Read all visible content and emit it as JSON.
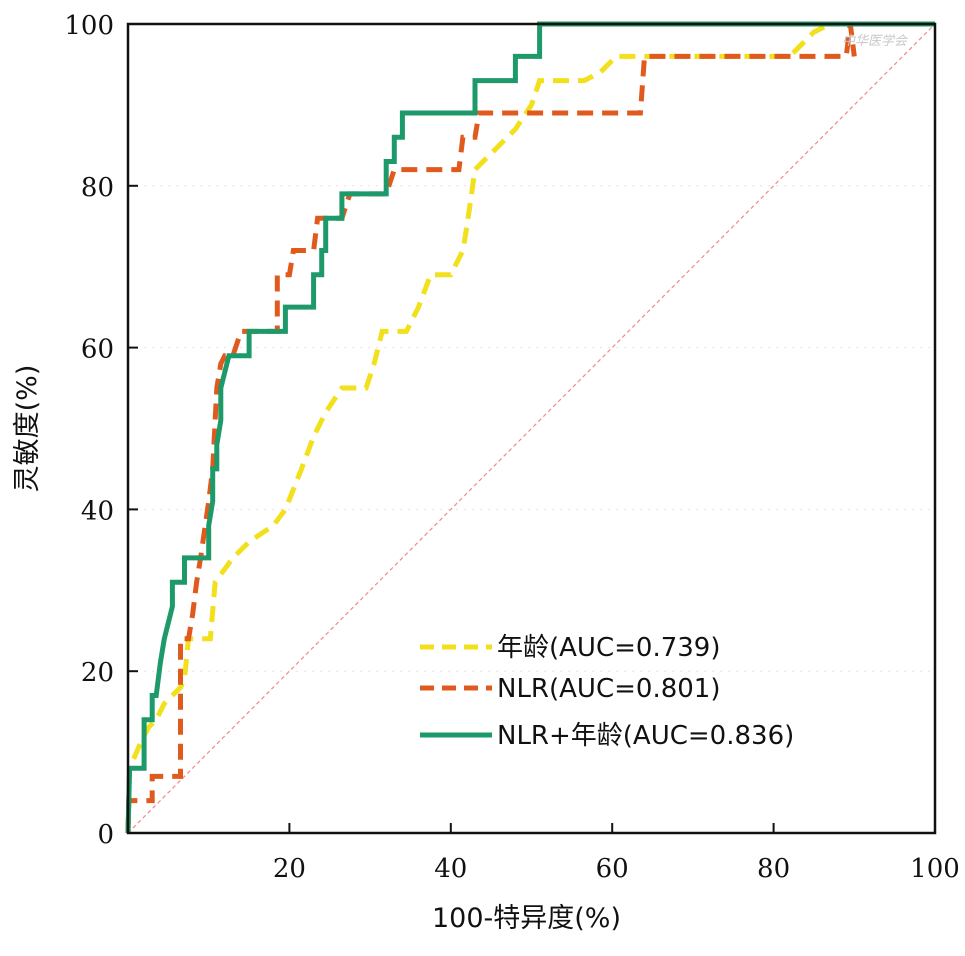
{
  "chart_data": {
    "type": "line",
    "title": "",
    "xlabel": "100-特异度(%)",
    "ylabel": "灵敏度(%)",
    "xlim": [
      0,
      100
    ],
    "ylim": [
      0,
      100
    ],
    "x_ticks": [
      20,
      40,
      60,
      80,
      100
    ],
    "y_ticks": [
      0,
      20,
      40,
      60,
      80,
      100
    ],
    "grid": true,
    "legend_position": "lower-right",
    "watermark": "中华医学会",
    "reference_line": {
      "name": "diagonal",
      "x": [
        0,
        100
      ],
      "y": [
        0,
        100
      ],
      "color": "#f08a8a"
    },
    "series": [
      {
        "name": "年龄(AUC=0.739)",
        "color": "#f2e01c",
        "style": "dashed",
        "x": [
          0,
          0.2,
          1.5,
          2.5,
          3.5,
          4.5,
          5.5,
          6.5,
          7.0,
          7.5,
          9.5,
          10.2,
          10.8,
          13.0,
          15.0,
          18.0,
          19.5,
          21.5,
          23.0,
          24.5,
          26.5,
          28.5,
          29.5,
          30.5,
          31.5,
          33.5,
          34.5,
          36.0,
          37.5,
          38.5,
          40.0,
          41.5,
          42.0,
          43.0,
          46.0,
          48.0,
          50.0,
          51.0,
          52.5,
          56.5,
          58.5,
          60.5,
          62.5,
          65.0,
          75.0,
          82.0,
          85.0,
          87.0,
          100.0
        ],
        "y": [
          0,
          8,
          11,
          13,
          14,
          16,
          17,
          18,
          19,
          24,
          24,
          24,
          31,
          34,
          36,
          38,
          40,
          45,
          49,
          52,
          55,
          55,
          55,
          58,
          62,
          62,
          62,
          65,
          69,
          69,
          69,
          72,
          75,
          82,
          85,
          87,
          90,
          93,
          93,
          93,
          94,
          96,
          96,
          96,
          96,
          96,
          99,
          100,
          100
        ]
      },
      {
        "name": "NLR(AUC=0.801)",
        "color": "#e05a1e",
        "style": "dashed",
        "x": [
          0,
          0.1,
          3.0,
          3.0,
          6.5,
          6.5,
          7.5,
          8.0,
          8.5,
          9.0,
          10.0,
          10.0,
          10.5,
          11.0,
          11.5,
          12.0,
          12.5,
          13.0,
          14.0,
          18.5,
          18.5,
          20.0,
          20.5,
          21.5,
          23.0,
          23.5,
          24.0,
          25.5,
          26.5,
          27.5,
          28.5,
          29.0,
          32.0,
          33.0,
          34.0,
          36.0,
          38.0,
          41.0,
          41.5,
          42.5,
          43.0,
          43.5,
          44.5,
          47.0,
          48.0,
          52.0,
          63.5,
          64.0,
          65.0,
          89.0,
          89.5,
          90.0
        ],
        "y": [
          0,
          4,
          4,
          7,
          7,
          24,
          24,
          27,
          31,
          34,
          41,
          41,
          45,
          55,
          58,
          59,
          59,
          59,
          62,
          62,
          69,
          69,
          72,
          72,
          72,
          76,
          76,
          76,
          76,
          79,
          79,
          79,
          79,
          82,
          82,
          82,
          82,
          82,
          86,
          86,
          86,
          89,
          89,
          89,
          89,
          89,
          89,
          96,
          96,
          96,
          100,
          96
        ]
      },
      {
        "name": "NLR+年龄(AUC=0.836)",
        "color": "#1e9a6a",
        "style": "solid",
        "x": [
          0,
          0.2,
          2.0,
          2.0,
          3.0,
          3.0,
          3.5,
          4.0,
          4.5,
          4.5,
          5.5,
          5.5,
          7.0,
          7.0,
          10.0,
          10.0,
          10.5,
          10.5,
          11.0,
          11.0,
          11.5,
          11.5,
          12.5,
          15.0,
          15.0,
          19.5,
          19.5,
          23.0,
          23.0,
          24.0,
          24.0,
          24.5,
          24.5,
          26.5,
          26.5,
          32.0,
          32.0,
          33.0,
          33.0,
          34.0,
          34.0,
          43.0,
          43.0,
          48.0,
          48.0,
          51.0,
          51.0,
          100.0
        ],
        "y": [
          0,
          8,
          8,
          14,
          14,
          17,
          17,
          21,
          24,
          24,
          28,
          31,
          31,
          34,
          34,
          38,
          41,
          45,
          45,
          48,
          51,
          55,
          59,
          59,
          62,
          62,
          65,
          65,
          69,
          69,
          72,
          72,
          76,
          76,
          79,
          79,
          83,
          83,
          86,
          86,
          89,
          89,
          93,
          93,
          96,
          96,
          100,
          100
        ]
      }
    ]
  }
}
